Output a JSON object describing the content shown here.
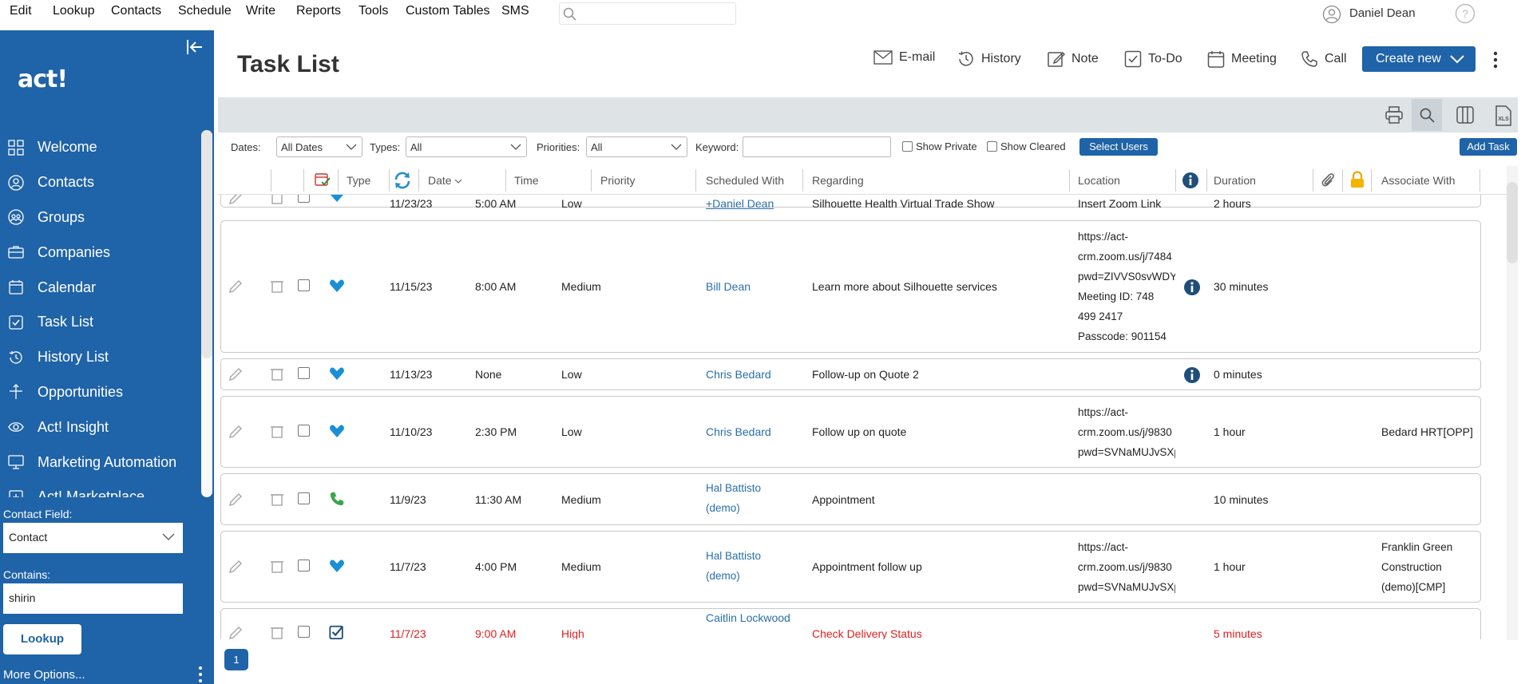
{
  "menu": [
    "Edit",
    "Lookup",
    "Contacts",
    "Schedule",
    "Write",
    "Reports",
    "Tools",
    "Custom Tables",
    "SMS"
  ],
  "user": {
    "name": "Daniel Dean"
  },
  "sidebar": {
    "logo": "act!",
    "items": [
      {
        "label": "Welcome",
        "icon": "grid-icon"
      },
      {
        "label": "Contacts",
        "icon": "person-icon"
      },
      {
        "label": "Groups",
        "icon": "groups-icon"
      },
      {
        "label": "Companies",
        "icon": "briefcase-icon"
      },
      {
        "label": "Calendar",
        "icon": "calendar-icon"
      },
      {
        "label": "Task List",
        "icon": "checkbox-icon"
      },
      {
        "label": "History List",
        "icon": "history-icon"
      },
      {
        "label": "Opportunities",
        "icon": "opportunities-icon"
      },
      {
        "label": "Act! Insight",
        "icon": "eye-icon"
      },
      {
        "label": "Marketing Automation",
        "icon": "monitor-icon"
      },
      {
        "label": "Act! Marketplace",
        "icon": "marketplace-icon"
      }
    ],
    "contact_field_label": "Contact Field:",
    "contact_field_value": "Contact",
    "contains_label": "Contains:",
    "contains_value": "shirin",
    "lookup_label": "Lookup",
    "more_options": "More Options..."
  },
  "header": {
    "title": "Task List",
    "actions": [
      "E-mail",
      "History",
      "Note",
      "To-Do",
      "Meeting",
      "Call"
    ],
    "create_label": "Create new"
  },
  "filters": {
    "dates_label": "Dates:",
    "dates_value": "All Dates",
    "types_label": "Types:",
    "types_value": "All",
    "priorities_label": "Priorities:",
    "priorities_value": "All",
    "keyword_label": "Keyword:",
    "show_private": "Show Private",
    "show_cleared": "Show Cleared",
    "select_users": "Select Users",
    "add_task": "Add Task"
  },
  "columns": {
    "type": "Type",
    "date": "Date",
    "time": "Time",
    "priority": "Priority",
    "scheduled_with": "Scheduled With",
    "regarding": "Regarding",
    "location": "Location",
    "duration": "Duration",
    "associate_with": "Associate With"
  },
  "rows": [
    {
      "date": "11/23/23",
      "time": "5:00 AM",
      "priority": "Low",
      "with": "+Daniel Dean",
      "regarding": "Silhouette Health Virtual Trade Show",
      "location": "Insert Zoom Link",
      "duration": "2 hours",
      "assoc": "",
      "type": "meeting-icon"
    },
    {
      "date": "11/15/23",
      "time": "8:00 AM",
      "priority": "Medium",
      "with": "Bill Dean",
      "regarding": "Learn more about Silhouette services",
      "location": [
        "https://act-",
        "crm.zoom.us/j/7484",
        "pwd=ZIVVS0svWDY",
        "Meeting ID: 748",
        "499 2417",
        "Passcode: 901154"
      ],
      "duration": "30 minutes",
      "assoc": "",
      "type": "meeting-icon",
      "info": true
    },
    {
      "date": "11/13/23",
      "time": "None",
      "priority": "Low",
      "with": "Chris Bedard",
      "regarding": "Follow-up on Quote 2",
      "location": [],
      "duration": "0 minutes",
      "assoc": "",
      "type": "meeting-icon",
      "info": true
    },
    {
      "date": "11/10/23",
      "time": "2:30 PM",
      "priority": "Low",
      "with": "Chris Bedard",
      "regarding": "Follow up on quote",
      "location": [
        "https://act-",
        "crm.zoom.us/j/9830",
        "pwd=SVNaMUJvSXp"
      ],
      "duration": "1 hour",
      "assoc": "Bedard HRT[OPP]",
      "type": "meeting-icon"
    },
    {
      "date": "11/9/23",
      "time": "11:30 AM",
      "priority": "Medium",
      "with": "Hal Battisto (demo)",
      "regarding": "Appointment",
      "location": [],
      "duration": "10 minutes",
      "assoc": "",
      "type": "phone-icon"
    },
    {
      "date": "11/7/23",
      "time": "4:00 PM",
      "priority": "Medium",
      "with": "Hal Battisto (demo)",
      "regarding": "Appointment follow up",
      "location": [
        "https://act-",
        "crm.zoom.us/j/9830",
        "pwd=SVNaMUJvSXp"
      ],
      "duration": "1 hour",
      "assoc": "Franklin Green Construction (demo)[CMP]",
      "type": "meeting-icon"
    },
    {
      "date": "11/7/23",
      "time": "9:00 AM",
      "priority": "High",
      "with": "Caitlin Lockwood",
      "regarding": "Check Delivery Status",
      "location": [],
      "duration": "5 minutes",
      "assoc": "",
      "type": "todo-icon"
    }
  ],
  "pagination": {
    "page": "1"
  },
  "colors": {
    "brand": "#1f63a8",
    "high_priority": "#e02020",
    "link": "#2a6fa8"
  }
}
